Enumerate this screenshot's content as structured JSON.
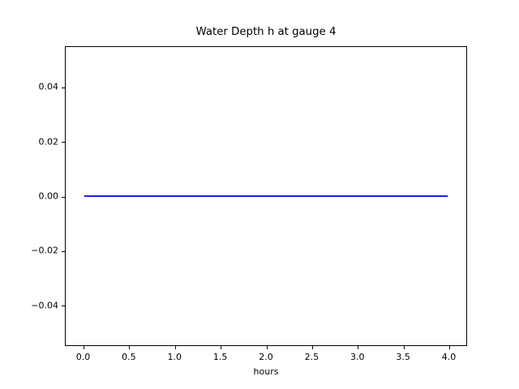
{
  "figure": {
    "background": "#ffffff",
    "text_color": "#000000",
    "spine_color": "#000000"
  },
  "chart_data": {
    "type": "line",
    "title": "Water Depth h at gauge 4",
    "xlabel": "hours",
    "ylabel": "",
    "xlim": [
      -0.2,
      4.2
    ],
    "ylim": [
      -0.055,
      0.055
    ],
    "xticks": [
      0.0,
      0.5,
      1.0,
      1.5,
      2.0,
      2.5,
      3.0,
      3.5,
      4.0
    ],
    "xtick_labels": [
      "0.0",
      "0.5",
      "1.0",
      "1.5",
      "2.0",
      "2.5",
      "3.0",
      "3.5",
      "4.0"
    ],
    "yticks": [
      -0.04,
      -0.02,
      0.0,
      0.02,
      0.04
    ],
    "ytick_labels": [
      "−0.04",
      "−0.02",
      "0.00",
      "0.02",
      "0.04"
    ],
    "grid": false,
    "legend_position": "none",
    "series": [
      {
        "name": "water-depth-h",
        "color": "#0000ff",
        "linewidth": 1.7,
        "x": [
          0.0,
          4.0
        ],
        "y": [
          0.0,
          0.0
        ]
      }
    ]
  }
}
